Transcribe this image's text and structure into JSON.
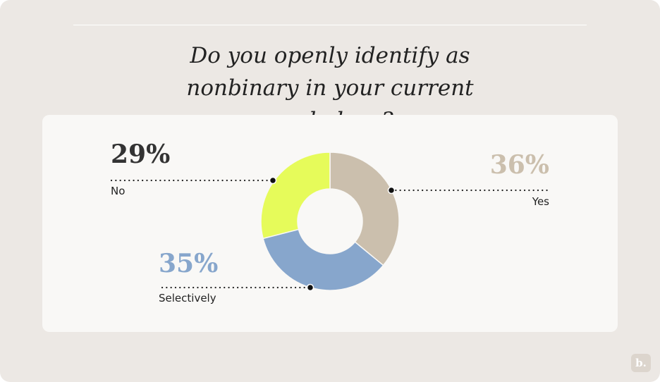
{
  "chart_data": {
    "type": "donut",
    "title": "Do you openly identify as nonbinary in your current workplace?",
    "categories": [
      "Yes",
      "Selectively",
      "No"
    ],
    "values": [
      36,
      35,
      29
    ],
    "value_labels": [
      "36%",
      "35%",
      "29%"
    ],
    "colors": [
      "#cbbfad",
      "#87a6cc",
      "#e6fb5a"
    ]
  },
  "logo": "b."
}
